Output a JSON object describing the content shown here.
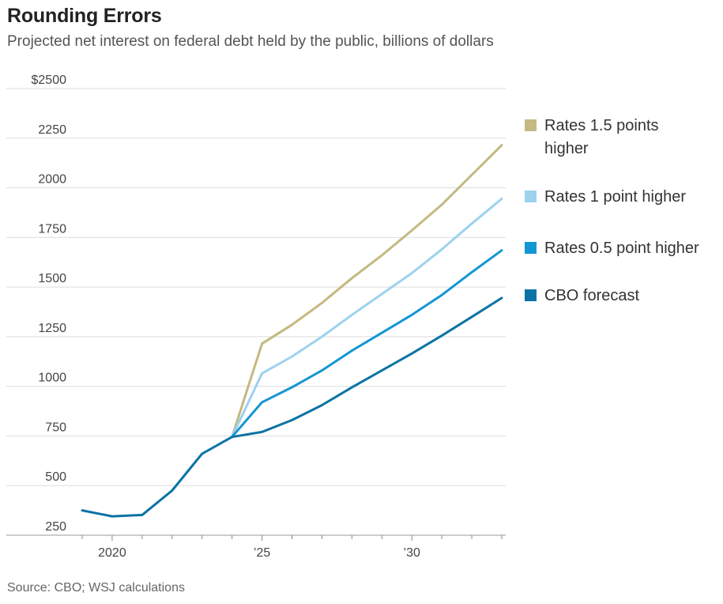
{
  "title": "Rounding Errors",
  "subtitle": "Projected net interest on federal debt held by the public, billions of dollars",
  "source": "Source: CBO; WSJ calculations",
  "colors": {
    "rates_1_5": "#c3b981",
    "rates_1": "#9dd2ef",
    "rates_0_5": "#1496d4",
    "cbo": "#0b73a4",
    "grid": "#dddddd",
    "axis": "#888888"
  },
  "chart_data": {
    "type": "line",
    "title": "Rounding Errors",
    "ylabel": "",
    "xlabel": "",
    "ylim": [
      250,
      2500
    ],
    "xlim": [
      2019,
      2033
    ],
    "yticks": [
      250,
      500,
      750,
      1000,
      1250,
      1500,
      1750,
      2000,
      2250,
      2500
    ],
    "ytick_labels": [
      "250",
      "500",
      "750",
      "1000",
      "1250",
      "1500",
      "1750",
      "2000",
      "2250",
      "$2500"
    ],
    "xticks": [
      2020,
      2025,
      2030
    ],
    "xtick_labels": [
      "2020",
      "’25",
      "’30"
    ],
    "grid": true,
    "legend_position": "right",
    "series": [
      {
        "name": "Rates 1.5 points higher",
        "color_key": "rates_1_5",
        "x": [
          2024,
          2025,
          2026,
          2027,
          2028,
          2029,
          2030,
          2031,
          2032,
          2033
        ],
        "values": [
          745,
          1215,
          1310,
          1420,
          1545,
          1660,
          1785,
          1915,
          2065,
          2215
        ]
      },
      {
        "name": "Rates 1 point higher",
        "color_key": "rates_1",
        "x": [
          2024,
          2025,
          2026,
          2027,
          2028,
          2029,
          2030,
          2031,
          2032,
          2033
        ],
        "values": [
          745,
          1065,
          1150,
          1250,
          1360,
          1465,
          1570,
          1690,
          1820,
          1945
        ]
      },
      {
        "name": "Rates 0.5 point higher",
        "color_key": "rates_0_5",
        "x": [
          2024,
          2025,
          2026,
          2027,
          2028,
          2029,
          2030,
          2031,
          2032,
          2033
        ],
        "values": [
          745,
          920,
          995,
          1080,
          1180,
          1270,
          1360,
          1460,
          1575,
          1685
        ]
      },
      {
        "name": "CBO forecast",
        "color_key": "cbo",
        "x": [
          2019,
          2020,
          2021,
          2022,
          2023,
          2024,
          2025,
          2026,
          2027,
          2028,
          2029,
          2030,
          2031,
          2032,
          2033
        ],
        "values": [
          375,
          345,
          352,
          475,
          660,
          745,
          770,
          830,
          905,
          995,
          1080,
          1165,
          1255,
          1350,
          1445
        ]
      }
    ]
  }
}
